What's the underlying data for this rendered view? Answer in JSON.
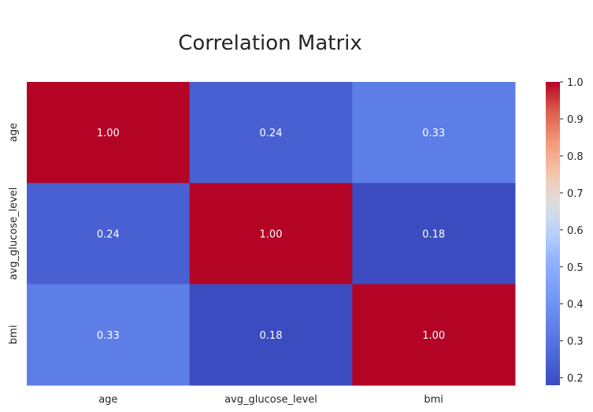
{
  "chart_data": {
    "type": "heatmap",
    "title": "Correlation Matrix",
    "x_categories": [
      "age",
      "avg_glucose_level",
      "bmi"
    ],
    "y_categories": [
      "age",
      "avg_glucose_level",
      "bmi"
    ],
    "values": [
      [
        1.0,
        0.24,
        0.33
      ],
      [
        0.24,
        1.0,
        0.18
      ],
      [
        0.33,
        0.18,
        1.0
      ]
    ],
    "value_labels": [
      [
        "1.00",
        "0.24",
        "0.33"
      ],
      [
        "0.24",
        "1.00",
        "0.18"
      ],
      [
        "0.33",
        "0.18",
        "1.00"
      ]
    ],
    "colormap": "coolwarm",
    "vmin": 0.18,
    "vmax": 1.0,
    "colorbar_ticks": [
      0.2,
      0.3,
      0.4,
      0.5,
      0.6,
      0.7,
      0.8,
      0.9,
      1.0
    ],
    "colorbar_tick_labels": [
      "0.2",
      "0.3",
      "0.4",
      "0.5",
      "0.6",
      "0.7",
      "0.8",
      "0.9",
      "1.0"
    ],
    "colorbar_position": "right",
    "annotation_text_color": "#ffffff",
    "grid": false
  }
}
